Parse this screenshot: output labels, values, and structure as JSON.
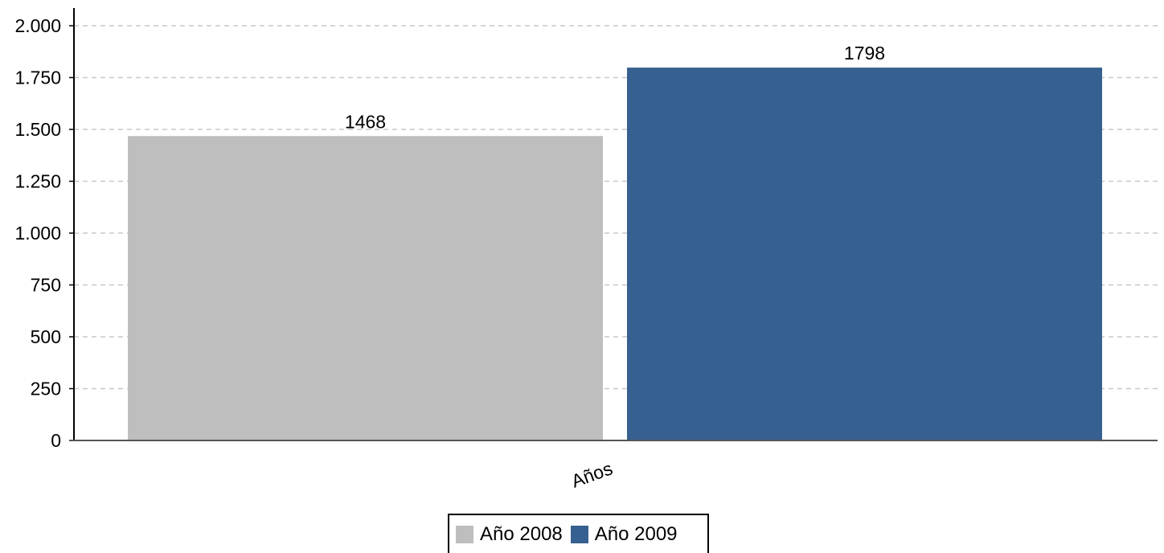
{
  "chart_data": {
    "type": "bar",
    "categories": [
      "Años"
    ],
    "series": [
      {
        "name": "Año 2008",
        "values": [
          1468
        ],
        "color": "#bebebe"
      },
      {
        "name": "Año 2009",
        "values": [
          1798
        ],
        "color": "#36608f"
      }
    ],
    "ylim": [
      0,
      2000
    ],
    "yticks": [
      0,
      250,
      500,
      750,
      1000,
      1250,
      1500,
      1750,
      2000
    ],
    "ytick_labels": [
      "0",
      "250",
      "500",
      "750",
      "1.000",
      "1.250",
      "1.500",
      "1.750",
      "2.000"
    ],
    "xtick_label": "Años",
    "data_labels": [
      "1468",
      "1798"
    ],
    "grid": true,
    "legend_position": "bottom-center"
  },
  "legend": {
    "items": [
      {
        "label": "Año 2008",
        "color": "#bebebe"
      },
      {
        "label": "Año 2009",
        "color": "#36608f"
      }
    ]
  }
}
